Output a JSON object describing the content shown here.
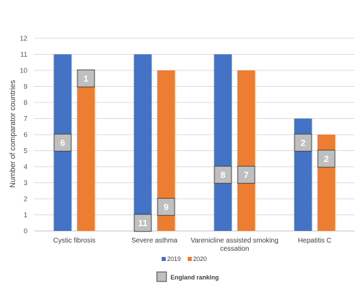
{
  "chart_data": {
    "type": "bar",
    "ylabel": "Number of comparator countries",
    "xlabel": "",
    "ylim": [
      0,
      12
    ],
    "yticks": [
      0,
      1,
      2,
      3,
      4,
      5,
      6,
      7,
      8,
      9,
      10,
      11,
      12
    ],
    "grid": true,
    "legend_position": "bottom",
    "categories": [
      [
        "Cystic fibrosis"
      ],
      [
        "Severe asthma"
      ],
      [
        "Varenicline assisted smoking",
        "cessation"
      ],
      [
        "Hepatitis C"
      ]
    ],
    "series": [
      {
        "name": "2019",
        "color": "#4472C4",
        "values": [
          11,
          11,
          11,
          7
        ]
      },
      {
        "name": "2020",
        "color": "#ED7D31",
        "values": [
          10,
          10,
          10,
          6
        ]
      }
    ],
    "england_ranking": {
      "label": "England ranking",
      "color": "#BFBFBF",
      "values": [
        [
          "6",
          "1"
        ],
        [
          "11",
          "9"
        ],
        [
          "8",
          "7"
        ],
        [
          "2",
          "2"
        ]
      ],
      "levels": [
        [
          5.5,
          9.5
        ],
        [
          0.5,
          1.5
        ],
        [
          3.5,
          3.5
        ],
        [
          5.5,
          4.5
        ]
      ]
    }
  }
}
